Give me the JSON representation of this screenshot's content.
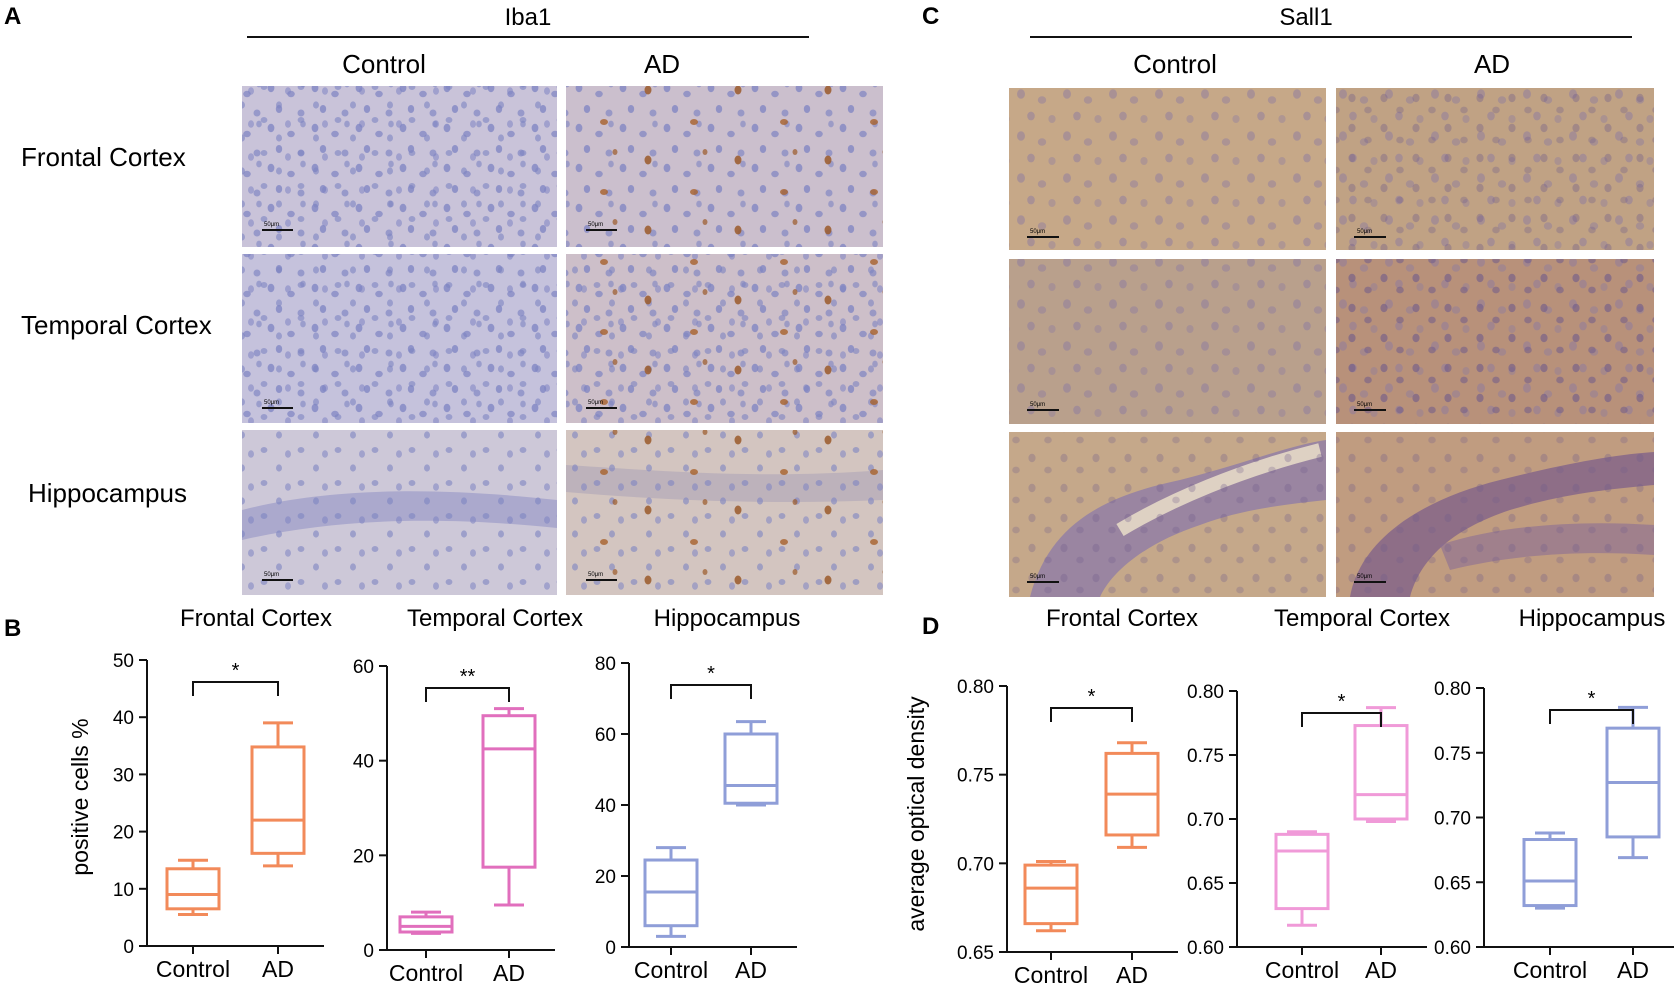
{
  "panel_a": {
    "letter": "A",
    "stain": "Iba1",
    "columns": [
      "Control",
      "AD"
    ],
    "rows": [
      "Frontal Cortex",
      "Temporal Cortex",
      "Hippocampus"
    ],
    "scale_label": "50μm",
    "colors": {
      "background": "#c9c3d9",
      "nuclei": "#7d83c2",
      "stain": "#9b5a2a"
    }
  },
  "panel_c": {
    "letter": "C",
    "stain": "Sall1",
    "columns": [
      "Control",
      "AD"
    ],
    "scale_label": "50μm",
    "colors": {
      "background": "#c6a888",
      "nuclei": "#8b7aa0",
      "band": "#8b7aa8"
    }
  },
  "panel_b": {
    "letter": "B",
    "ylabel": "positive cells %"
  },
  "panel_d": {
    "letter": "D",
    "ylabel": "average optical density"
  },
  "chart_data": [
    {
      "type": "box",
      "panel": "B",
      "title": "Frontal Cortex",
      "categories": [
        "Control",
        "AD"
      ],
      "ylim": [
        0,
        50
      ],
      "yticks": [
        "0",
        "10",
        "20",
        "30",
        "40",
        "50"
      ],
      "color": "#f28a5a",
      "boxes": [
        {
          "category": "Control",
          "min": 5.5,
          "q1": 6.5,
          "median": 9.0,
          "q3": 13.5,
          "max": 15.0
        },
        {
          "category": "AD",
          "min": 14.0,
          "q1": 16.2,
          "median": 22.0,
          "q3": 34.8,
          "max": 39.0
        }
      ],
      "significance": "*"
    },
    {
      "type": "box",
      "panel": "B",
      "title": "Temporal Cortex",
      "categories": [
        "Control",
        "AD"
      ],
      "ylim": [
        0,
        60
      ],
      "yticks": [
        "0",
        "20",
        "40",
        "60"
      ],
      "color": "#e16fbd",
      "boxes": [
        {
          "category": "Control",
          "min": 3.5,
          "q1": 3.8,
          "median": 5.0,
          "q3": 7.0,
          "max": 8.0
        },
        {
          "category": "AD",
          "min": 9.5,
          "q1": 17.5,
          "median": 42.5,
          "q3": 49.5,
          "max": 51.0
        }
      ],
      "significance": "**"
    },
    {
      "type": "box",
      "panel": "B",
      "title": "Hippocampus",
      "categories": [
        "Control",
        "AD"
      ],
      "ylim": [
        0,
        80
      ],
      "yticks": [
        "0",
        "20",
        "40",
        "60",
        "80"
      ],
      "color": "#8f9ed8",
      "boxes": [
        {
          "category": "Control",
          "min": 3.0,
          "q1": 6.0,
          "median": 15.5,
          "q3": 24.5,
          "max": 28.0
        },
        {
          "category": "AD",
          "min": 40.0,
          "q1": 40.5,
          "median": 45.5,
          "q3": 60.0,
          "max": 63.5
        }
      ],
      "significance": "*"
    },
    {
      "type": "box",
      "panel": "D",
      "title": "Frontal Cortex",
      "categories": [
        "Control",
        "AD"
      ],
      "ylim": [
        0.65,
        0.8
      ],
      "yticks": [
        "0.65",
        "0.70",
        "0.75",
        "0.80"
      ],
      "color": "#f28a5a",
      "boxes": [
        {
          "category": "Control",
          "min": 0.662,
          "q1": 0.666,
          "median": 0.686,
          "q3": 0.699,
          "max": 0.701
        },
        {
          "category": "AD",
          "min": 0.709,
          "q1": 0.716,
          "median": 0.739,
          "q3": 0.762,
          "max": 0.768
        }
      ],
      "significance": "*"
    },
    {
      "type": "box",
      "panel": "D",
      "title": "Temporal Cortex",
      "categories": [
        "Control",
        "AD"
      ],
      "ylim": [
        0.6,
        0.8
      ],
      "yticks": [
        "0.60",
        "0.65",
        "0.70",
        "0.75",
        "0.80"
      ],
      "color": "#f09ad8",
      "boxes": [
        {
          "category": "Control",
          "min": 0.617,
          "q1": 0.63,
          "median": 0.675,
          "q3": 0.688,
          "max": 0.69
        },
        {
          "category": "AD",
          "min": 0.698,
          "q1": 0.7,
          "median": 0.719,
          "q3": 0.773,
          "max": 0.787
        }
      ],
      "significance": "*"
    },
    {
      "type": "box",
      "panel": "D",
      "title": "Hippocampus",
      "categories": [
        "Control",
        "AD"
      ],
      "ylim": [
        0.6,
        0.8
      ],
      "yticks": [
        "0.60",
        "0.65",
        "0.70",
        "0.75",
        "0.80"
      ],
      "color": "#8f9ed8",
      "boxes": [
        {
          "category": "Control",
          "min": 0.63,
          "q1": 0.632,
          "median": 0.651,
          "q3": 0.683,
          "max": 0.688
        },
        {
          "category": "AD",
          "min": 0.669,
          "q1": 0.685,
          "median": 0.727,
          "q3": 0.769,
          "max": 0.785
        }
      ],
      "significance": "*"
    }
  ]
}
